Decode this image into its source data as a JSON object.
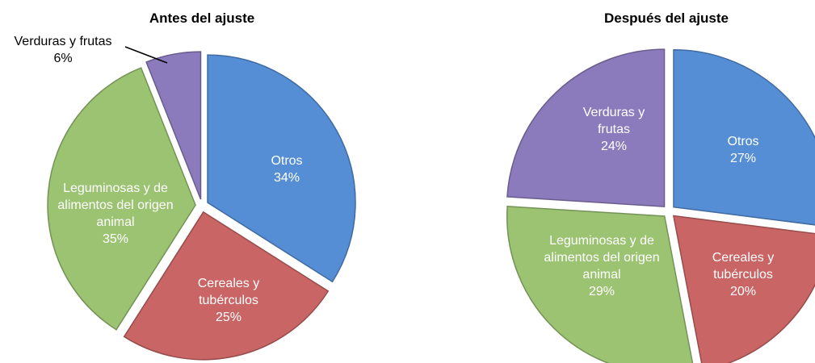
{
  "chart_data": [
    {
      "type": "pie",
      "title": "Antes del ajuste",
      "categories": [
        "Otros",
        "Cereales y tubérculos",
        "Leguminosas y de alimentos del origen animal",
        "Verduras y frutas"
      ],
      "values": [
        34,
        25,
        35,
        6
      ],
      "value_labels": [
        "34%",
        "25%",
        "35%",
        "6%"
      ],
      "colors": [
        "#558ed5",
        "#c96565",
        "#9bc372",
        "#8c7bbc"
      ]
    },
    {
      "type": "pie",
      "title": "Después del ajuste",
      "categories": [
        "Otros",
        "Cereales y tubérculos",
        "Leguminosas y de alimentos del origen animal",
        "Verduras y frutas"
      ],
      "values": [
        27,
        20,
        29,
        24
      ],
      "value_labels": [
        "27%",
        "20%",
        "29%",
        "24%"
      ],
      "colors": [
        "#558ed5",
        "#c96565",
        "#9bc372",
        "#8c7bbc"
      ]
    }
  ]
}
